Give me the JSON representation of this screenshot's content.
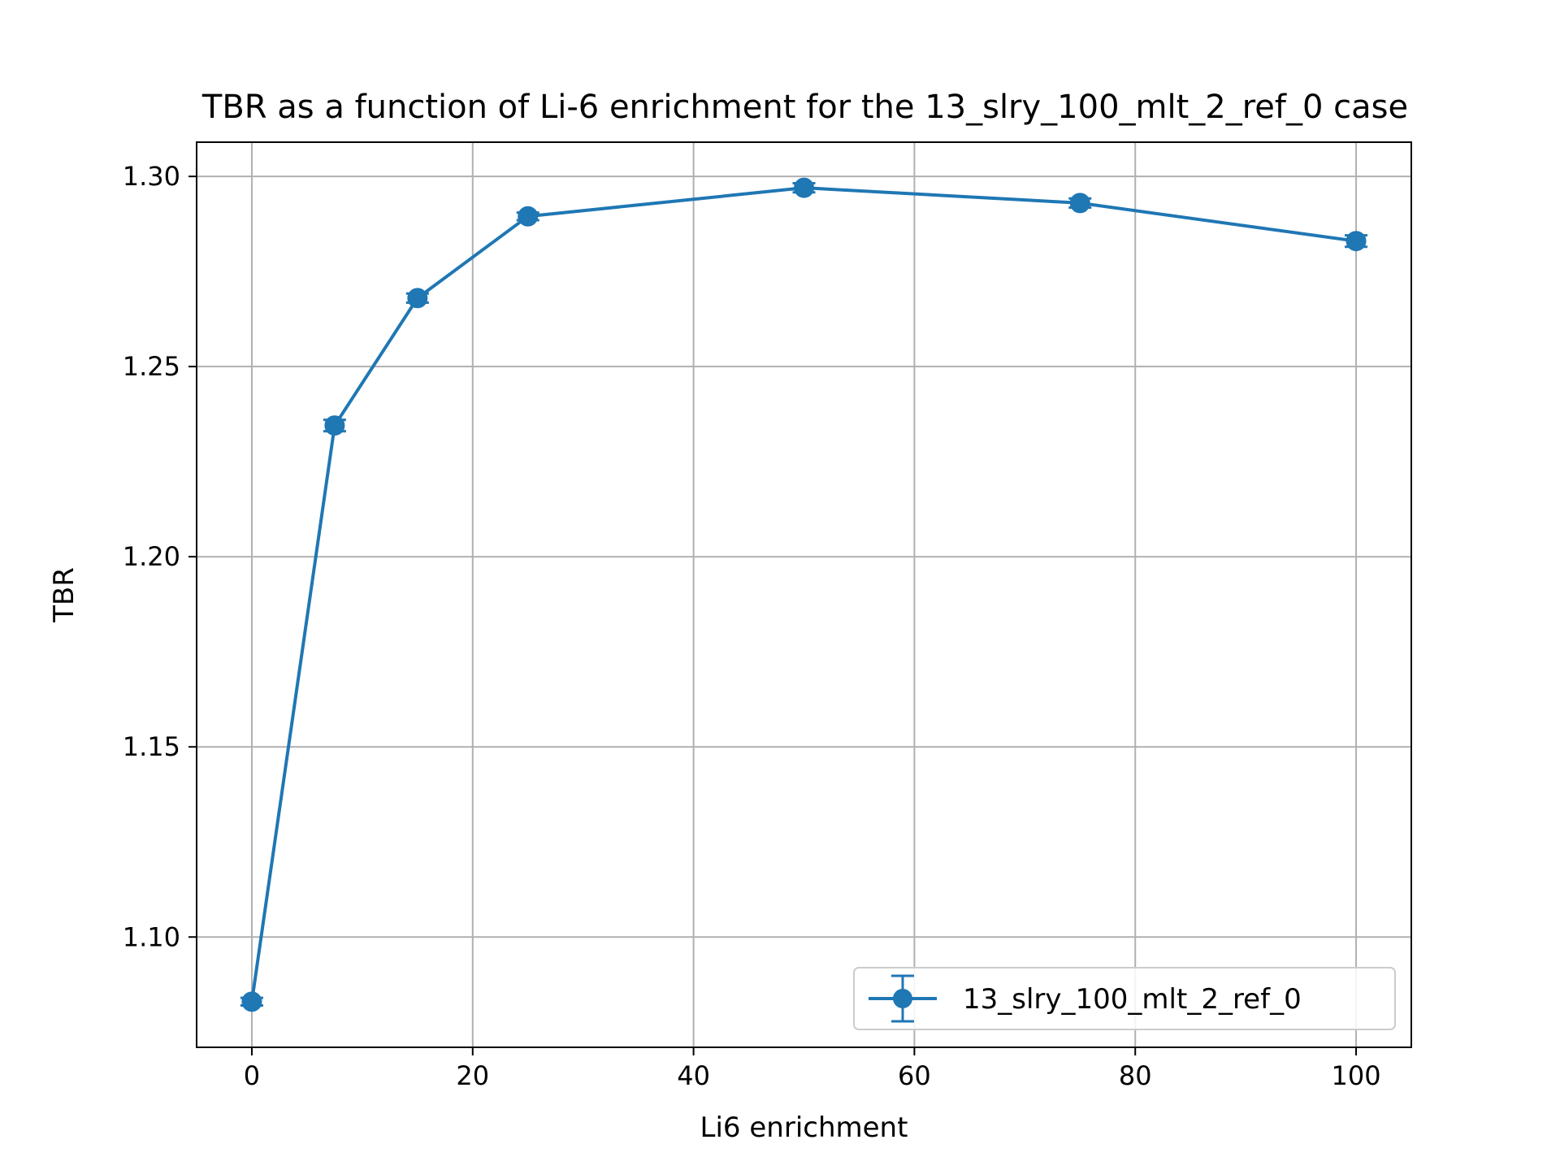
{
  "chart_data": {
    "type": "line",
    "title": "TBR as a function of Li-6 enrichment for the 13_slry_100_mlt_2_ref_0 case",
    "xlabel": "Li6 enrichment",
    "ylabel": "TBR",
    "xlim": [
      -5,
      105
    ],
    "ylim": [
      1.071,
      1.309
    ],
    "xticks": [
      0,
      20,
      40,
      60,
      80,
      100
    ],
    "xtick_labels": [
      "0",
      "20",
      "40",
      "60",
      "80",
      "100"
    ],
    "yticks": [
      1.1,
      1.15,
      1.2,
      1.25,
      1.3
    ],
    "ytick_labels": [
      "1.10",
      "1.15",
      "1.20",
      "1.25",
      "1.30"
    ],
    "grid": true,
    "legend_position": "lower-right",
    "series": [
      {
        "name": "13_slry_100_mlt_2_ref_0",
        "color": "#1f77b4",
        "marker": "circle",
        "error_bars": true,
        "x": [
          0,
          7.5,
          15,
          25,
          50,
          75,
          100
        ],
        "y": [
          1.083,
          1.2345,
          1.268,
          1.2895,
          1.297,
          1.293,
          1.283
        ],
        "yerr": [
          0.001,
          0.0015,
          0.0012,
          0.001,
          0.0012,
          0.0012,
          0.0015
        ]
      }
    ]
  }
}
